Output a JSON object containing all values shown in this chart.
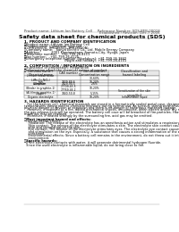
{
  "background_color": "#ffffff",
  "header_left": "Product name: Lithium Ion Battery Cell",
  "header_right_line1": "Reference Number: SDS-BEB-00018",
  "header_right_line2": "Established / Revision: Dec.7.2016",
  "title": "Safety data sheet for chemical products (SDS)",
  "section1_title": "1. PRODUCT AND COMPANY IDENTIFICATION",
  "section1_lines": [
    "・Product name: Lithium Ion Battery Cell",
    "・Product code: Cylindrical-type cell",
    "   (IHR18650U, IHR18650L, IHR18650A)",
    "・Company name:   Sanyo Electric Co., Ltd. Mobile Energy Company",
    "・Address:           2001 Kamionakano, Sumoto-City, Hyogo, Japan",
    "・Telephone number:    +81-799-26-4111",
    "・Fax number:    +81-799-26-4125",
    "・Emergency telephone number (Weekdays): +81-799-26-3842",
    "                                        (Night and holiday): +81-799-26-4101"
  ],
  "section2_title": "2. COMPOSITION / INFORMATION ON INGREDIENTS",
  "section2_sub1": "・Substance or preparation: Preparation",
  "section2_sub2": "・Information about the chemical nature of product",
  "table_headers": [
    "Common name /\nChemical name",
    "CAS number",
    "Concentration /\nConcentration range",
    "Classification and\nhazard labeling"
  ],
  "table_rows": [
    [
      "Lithium cobalt oxide\n(LiMn-Co-NiO₂)",
      "",
      "30-60%",
      ""
    ],
    [
      "Iron",
      "7439-89-6",
      "10-20%",
      ""
    ],
    [
      "Aluminum",
      "7429-90-5",
      "2-6%",
      ""
    ],
    [
      "Graphite\n(Binder in graphite-1)\n(Al-film in graphite-1)",
      "77709-43-5\n77769-44-2",
      "10-20%",
      ""
    ],
    [
      "Copper",
      "7440-50-8",
      "5-15%",
      "Sensitization of the skin\ngroup No.2"
    ],
    [
      "Organic electrolyte",
      "",
      "10-20%",
      "Inflammable liquid"
    ]
  ],
  "section3_title": "3. HAZARDS IDENTIFICATION",
  "section3_para": [
    "   For the battery cell, chemical materials are stored in a hermetically sealed metal case, designed to withstand",
    "temperatures during electro-chemical reactions during normal use. As a result, during normal use, there is no",
    "physical danger of ignition or explosion and there is no danger of hazardous materials leakage.",
    "   However, if exposed to a fire, added mechanical shocks, decompose, when electro and/or dry miss-use,",
    "the gas release vent will be operated. The battery cell case will be breached of fire-particles. Hazardous",
    "materials may be released.",
    "   Moreover, if heated strongly by the surrounding fire, acid gas may be emitted."
  ],
  "section3_bullet1": "・Most important hazard and effects:",
  "section3_sub1_lines": [
    "  Human health effects:",
    "    Inhalation: The release of the electrolyte has an anesthesia action and stimulates a respiratory tract.",
    "    Skin contact: The release of the electrolyte stimulates a skin. The electrolyte skin contact causes a",
    "    sore and stimulation on the skin.",
    "    Eye contact: The release of the electrolyte stimulates eyes. The electrolyte eye contact causes a sore",
    "    and stimulation on the eye. Especially, a substance that causes a strong inflammation of the eyes is",
    "    contained.",
    "    Environmental effects: Since a battery cell remains in the environment, do not throw out it into the",
    "    environment."
  ],
  "section3_bullet2": "・Specific hazards:",
  "section3_sub2_lines": [
    "  If the electrolyte contacts with water, it will generate detrimental hydrogen fluoride.",
    "  Since the used electrolyte is inflammable liquid, do not bring close to fire."
  ]
}
